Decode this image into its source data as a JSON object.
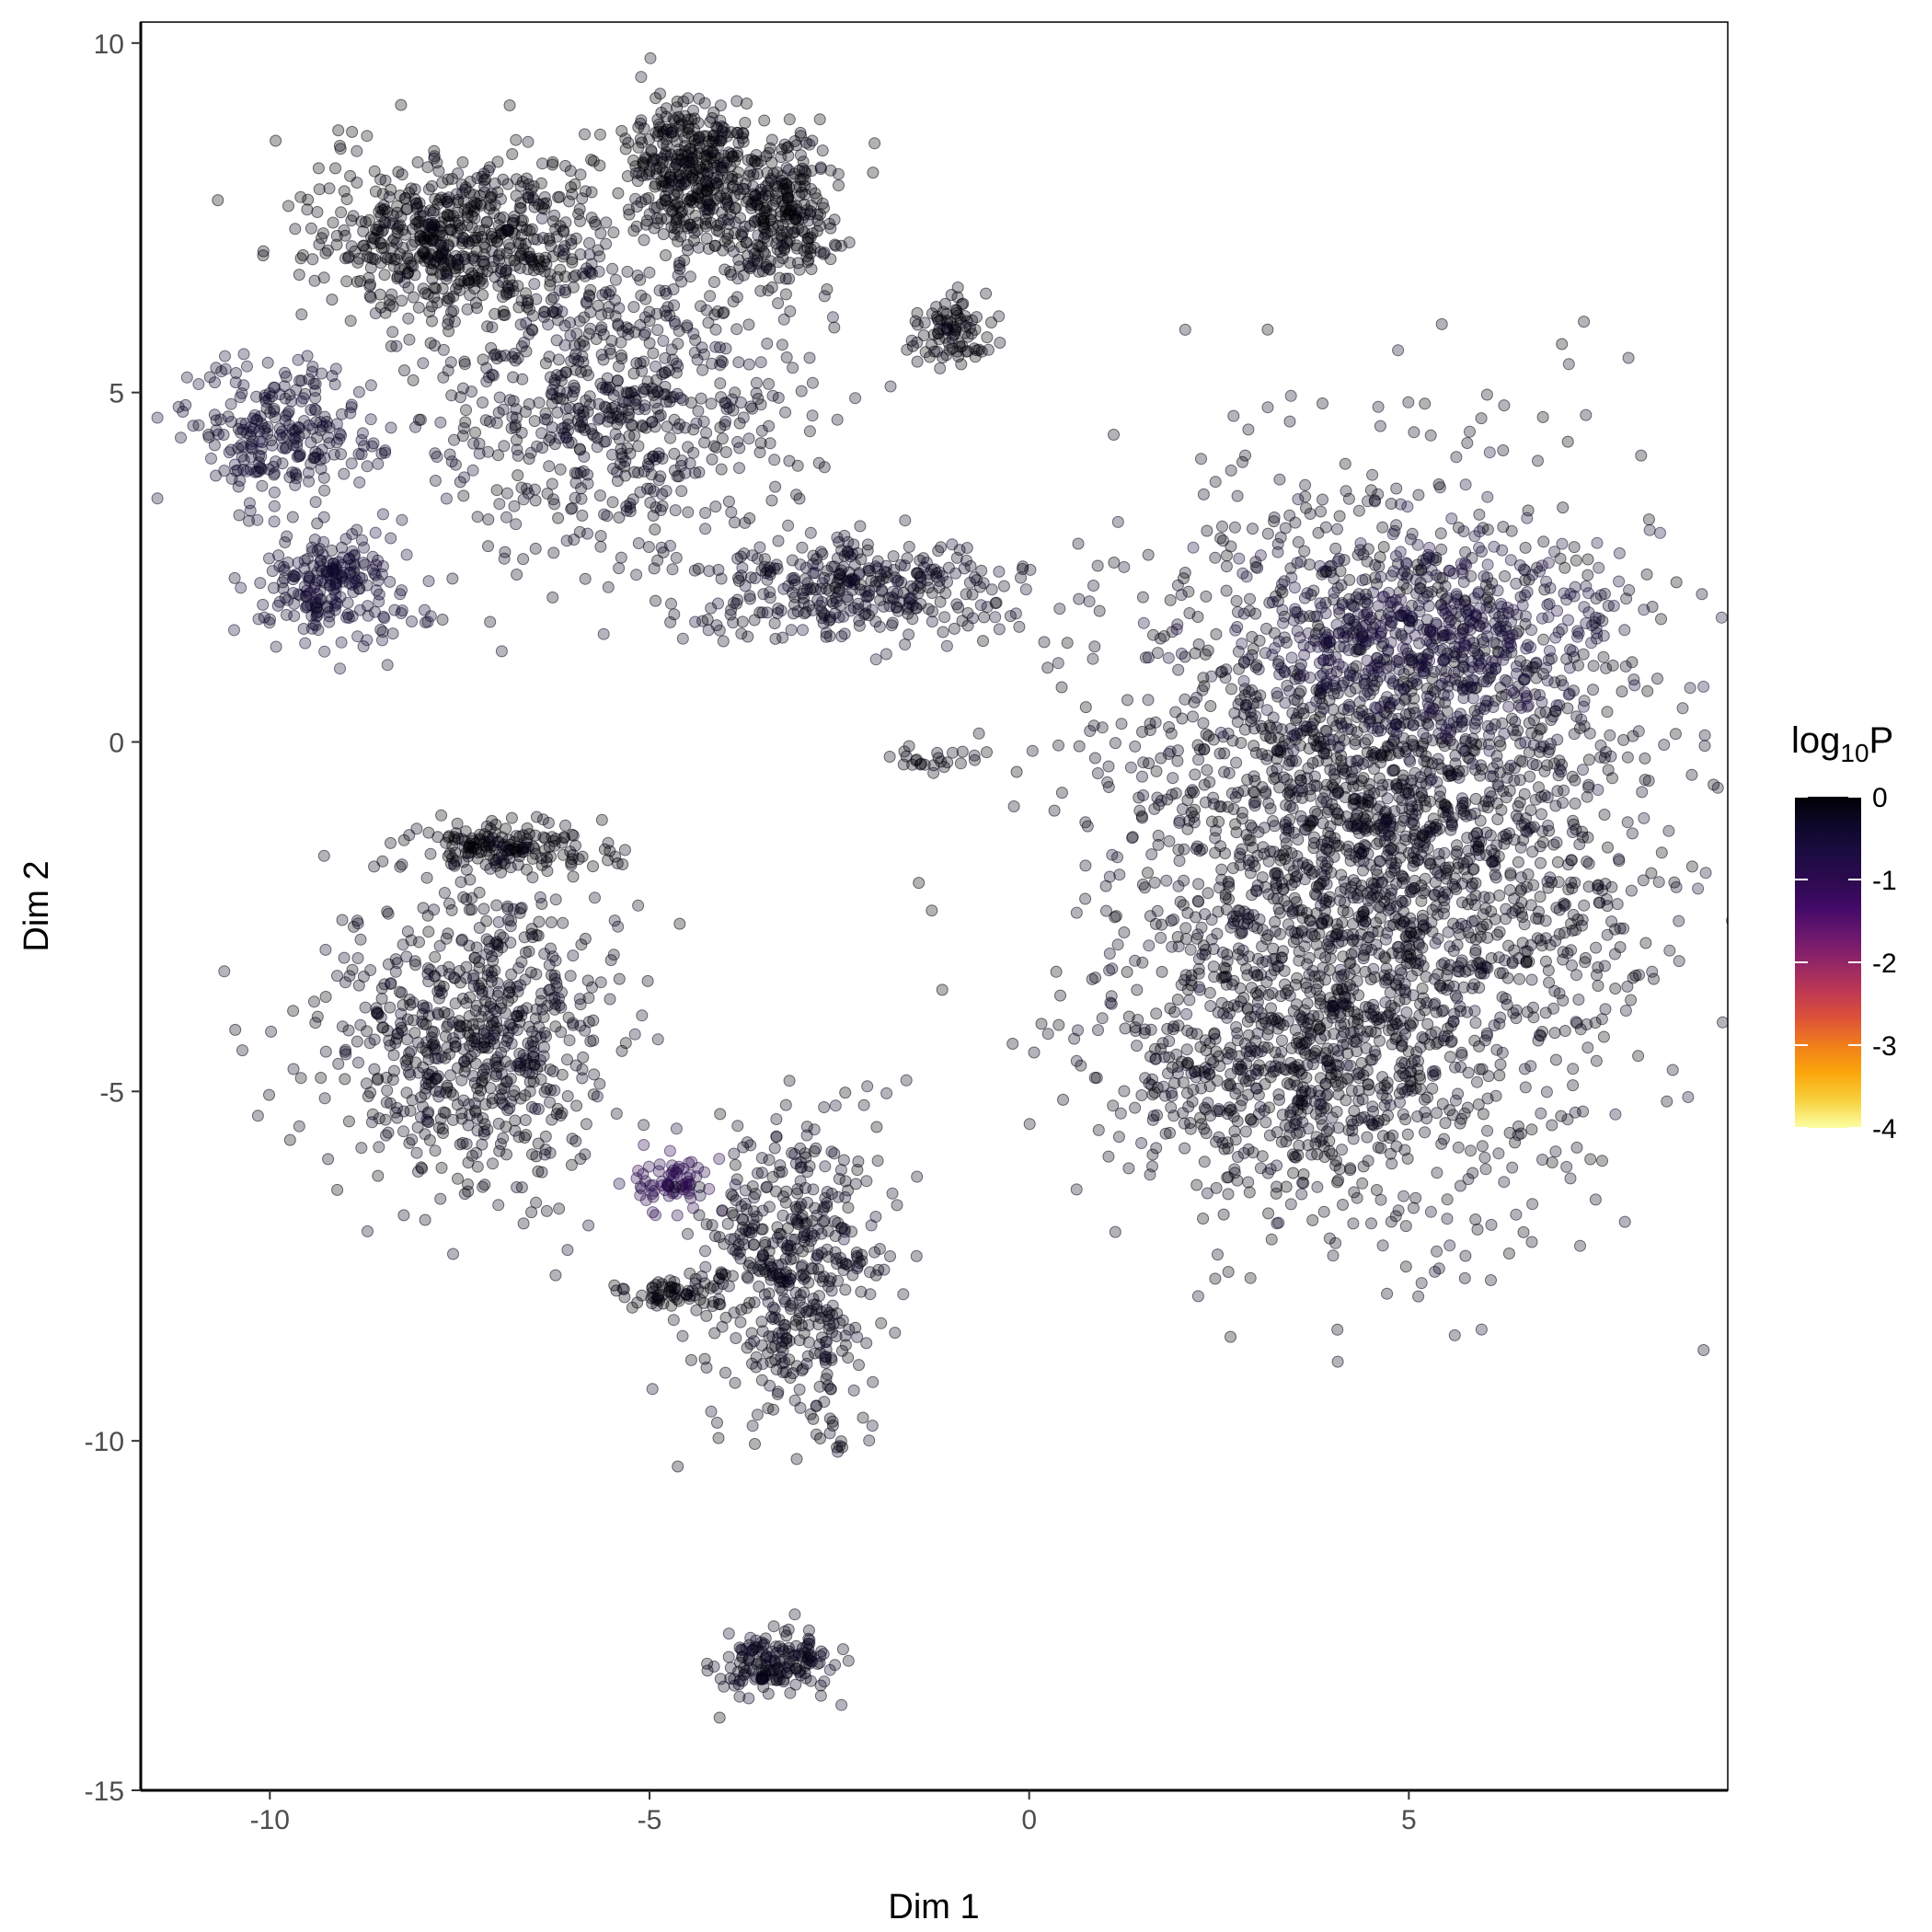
{
  "chart_data": {
    "type": "scatter",
    "title": "",
    "xlabel": "Dim 1",
    "ylabel": "Dim 2",
    "xlim": [
      -11.7,
      9.2
    ],
    "ylim": [
      -15,
      10.3
    ],
    "xticks": [
      -10,
      -5,
      0,
      5
    ],
    "yticks": [
      10,
      5,
      0,
      -5,
      -10,
      -15
    ],
    "xtick_labels": [
      "-10",
      "-5",
      "0",
      "5"
    ],
    "ytick_labels": [
      "10",
      "5",
      "0",
      "-5",
      "-10",
      "-15"
    ],
    "grid": false,
    "point_alpha": 0.3,
    "colorbar": {
      "title_main": "log",
      "title_sub": "10",
      "title_tail": "P",
      "range": [
        -4,
        0
      ],
      "ticks": [
        0,
        -1,
        -2,
        -3,
        -4
      ],
      "tick_labels": [
        "0",
        "-1",
        "-2",
        "-3",
        "-4"
      ],
      "palette": [
        "#fcffa4",
        "#f7d13d",
        "#fca50a",
        "#f07e1b",
        "#dd513a",
        "#bc3754",
        "#932667",
        "#6a176e",
        "#420a68",
        "#2c0a4e",
        "#1b0c41",
        "#0d0829",
        "#000004"
      ],
      "placement": "right"
    },
    "clusters": [
      {
        "name": "large-right",
        "cx": 4.7,
        "cy": -1.3,
        "sx": 1.75,
        "sy": 2.4,
        "n": 2600,
        "value": -0.15
      },
      {
        "name": "large-right-upper",
        "cx": 5.2,
        "cy": 1.5,
        "sx": 1.2,
        "sy": 0.8,
        "n": 500,
        "value": -0.5
      },
      {
        "name": "large-right-lower",
        "cx": 3.3,
        "cy": -4.6,
        "sx": 1.1,
        "sy": 0.9,
        "n": 500,
        "value": -0.12
      },
      {
        "name": "top-left-a",
        "cx": -7.6,
        "cy": 7.2,
        "sx": 0.9,
        "sy": 0.6,
        "n": 600,
        "value": -0.05
      },
      {
        "name": "top-left-b",
        "cx": -4.5,
        "cy": 8.2,
        "sx": 0.4,
        "sy": 0.5,
        "n": 350,
        "value": -0.05
      },
      {
        "name": "top-left-c",
        "cx": -3.3,
        "cy": 7.6,
        "sx": 0.4,
        "sy": 0.5,
        "n": 300,
        "value": -0.05
      },
      {
        "name": "top-left-mid",
        "cx": -5.5,
        "cy": 5.0,
        "sx": 1.2,
        "sy": 1.2,
        "n": 700,
        "value": -0.18
      },
      {
        "name": "top-left-stream",
        "cx": -2.2,
        "cy": 2.2,
        "sx": 1.1,
        "sy": 0.35,
        "n": 350,
        "value": -0.22
      },
      {
        "name": "far-left",
        "cx": -9.8,
        "cy": 4.4,
        "sx": 0.6,
        "sy": 0.5,
        "n": 250,
        "value": -0.35
      },
      {
        "name": "far-left-low",
        "cx": -9.2,
        "cy": 2.3,
        "sx": 0.5,
        "sy": 0.4,
        "n": 220,
        "value": -0.38
      },
      {
        "name": "upper-right-arm",
        "cx": -1.0,
        "cy": 5.9,
        "sx": 0.3,
        "sy": 0.2,
        "n": 90,
        "value": -0.08
      },
      {
        "name": "mid-left-top",
        "cx": -6.9,
        "cy": -1.5,
        "sx": 0.6,
        "sy": 0.18,
        "n": 160,
        "value": -0.05
      },
      {
        "name": "mid-left",
        "cx": -7.3,
        "cy": -4.2,
        "sx": 0.9,
        "sy": 1.1,
        "n": 700,
        "value": -0.15
      },
      {
        "name": "mid-left-purple",
        "cx": -4.7,
        "cy": -6.3,
        "sx": 0.3,
        "sy": 0.2,
        "n": 70,
        "value": -0.9
      },
      {
        "name": "mid-bottom",
        "cx": -3.1,
        "cy": -7.6,
        "sx": 0.6,
        "sy": 1.0,
        "n": 500,
        "value": -0.15
      },
      {
        "name": "mid-bottom-left",
        "cx": -4.7,
        "cy": -7.9,
        "sx": 0.3,
        "sy": 0.12,
        "n": 60,
        "value": -0.05
      },
      {
        "name": "bottom",
        "cx": -3.4,
        "cy": -13.2,
        "sx": 0.45,
        "sy": 0.22,
        "n": 160,
        "value": -0.2
      },
      {
        "name": "center-dash",
        "cx": -1.4,
        "cy": -0.25,
        "sx": 0.35,
        "sy": 0.12,
        "n": 25,
        "value": -0.1
      }
    ]
  }
}
